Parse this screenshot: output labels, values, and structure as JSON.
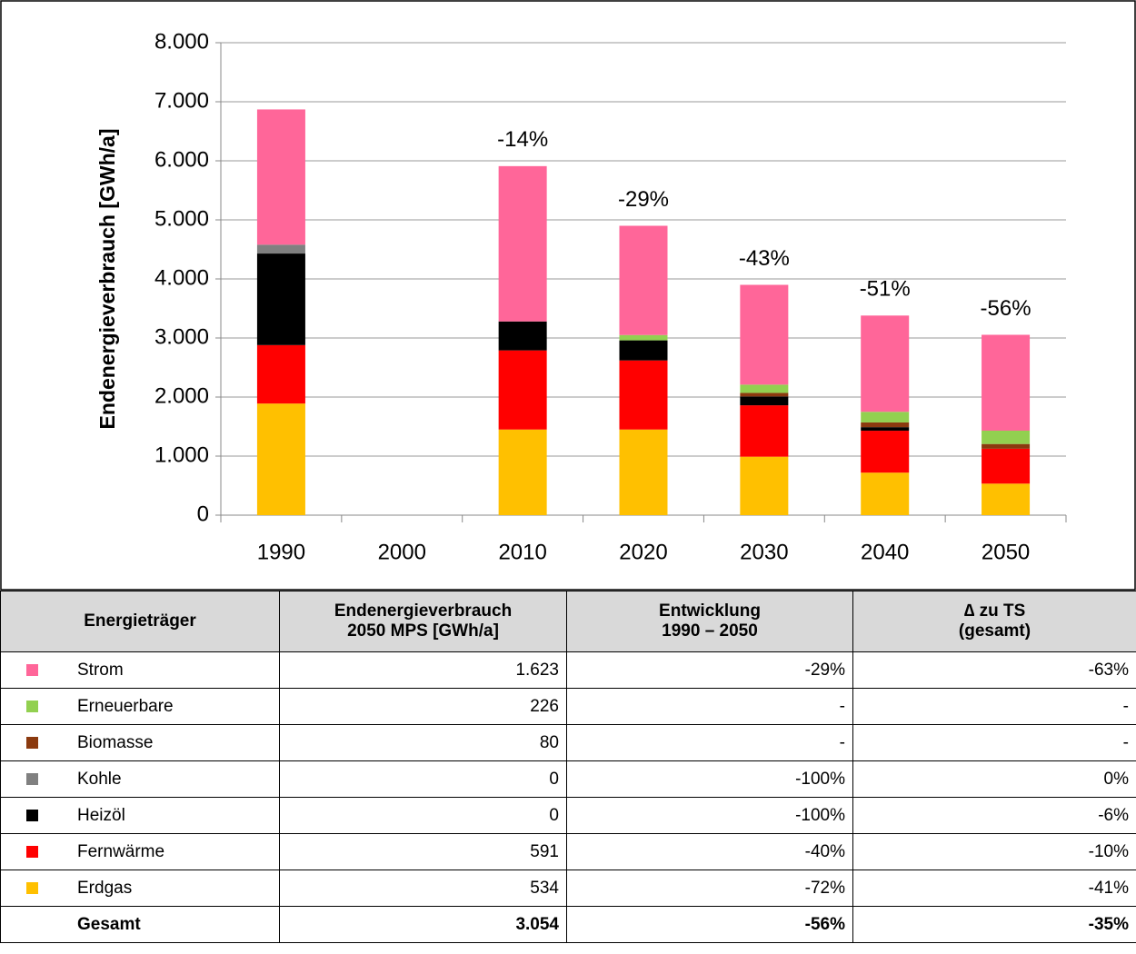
{
  "chart_data": {
    "type": "stacked_bar",
    "y_label": "Endenergieverbrauch [GWh/a]",
    "categories": [
      "1990",
      "2000",
      "2010",
      "2020",
      "2030",
      "2040",
      "2050"
    ],
    "series": [
      {
        "name": "Erdgas",
        "color": "#ffc000",
        "values": [
          1890,
          null,
          1450,
          1450,
          990,
          720,
          534
        ]
      },
      {
        "name": "Fernwärme",
        "color": "#ff0000",
        "values": [
          990,
          null,
          1340,
          1170,
          870,
          710,
          591
        ]
      },
      {
        "name": "Heizöl",
        "color": "#000000",
        "values": [
          1550,
          null,
          490,
          340,
          150,
          60,
          0
        ]
      },
      {
        "name": "Kohle",
        "color": "#808080",
        "values": [
          150,
          null,
          0,
          0,
          0,
          0,
          0
        ]
      },
      {
        "name": "Biomasse",
        "color": "#8b3a0f",
        "values": [
          0,
          null,
          0,
          0,
          60,
          80,
          80
        ]
      },
      {
        "name": "Erneuerbare",
        "color": "#92d050",
        "values": [
          0,
          null,
          0,
          90,
          140,
          180,
          226
        ]
      },
      {
        "name": "Strom",
        "color": "#ff6699",
        "values": [
          2290,
          null,
          2630,
          1850,
          1690,
          1630,
          1623
        ]
      }
    ],
    "annotations": [
      null,
      null,
      "-14%",
      "-29%",
      "-43%",
      "-51%",
      "-56%"
    ],
    "ylim": [
      0,
      8000
    ],
    "yticks": [
      0,
      {
        "value": 1000,
        "label": "1.000"
      },
      {
        "value": 2000,
        "label": "2.000"
      },
      {
        "value": 3000,
        "label": "3.000"
      },
      {
        "value": 4000,
        "label": "4.000"
      },
      {
        "value": 5000,
        "label": "5.000"
      },
      {
        "value": 6000,
        "label": "6.000"
      },
      {
        "value": 7000,
        "label": "7.000"
      },
      {
        "value": 8000,
        "label": "8.000"
      }
    ],
    "grid": true
  },
  "table": {
    "header": [
      "Energieträger",
      "Endenergieverbrauch\n2050 MPS [GWh/a]",
      "Entwicklung\n1990 – 2050",
      "∆ zu TS\n(gesamt)"
    ],
    "rows": [
      {
        "color": "#ff6699",
        "cells": [
          "Strom",
          "1.623",
          "-29%",
          "-63%"
        ]
      },
      {
        "color": "#92d050",
        "cells": [
          "Erneuerbare",
          "226",
          "-",
          "-"
        ]
      },
      {
        "color": "#8b3a0f",
        "cells": [
          "Biomasse",
          "80",
          "-",
          "-"
        ]
      },
      {
        "color": "#808080",
        "cells": [
          "Kohle",
          "0",
          "-100%",
          "0%"
        ]
      },
      {
        "color": "#000000",
        "cells": [
          "Heizöl",
          "0",
          "-100%",
          "-6%"
        ]
      },
      {
        "color": "#ff0000",
        "cells": [
          "Fernwärme",
          "591",
          "-40%",
          "-10%"
        ]
      },
      {
        "color": "#ffc000",
        "cells": [
          "Erdgas",
          "534",
          "-72%",
          "-41%"
        ]
      }
    ],
    "total": [
      "Gesamt",
      "3.054",
      "-56%",
      "-35%"
    ]
  }
}
